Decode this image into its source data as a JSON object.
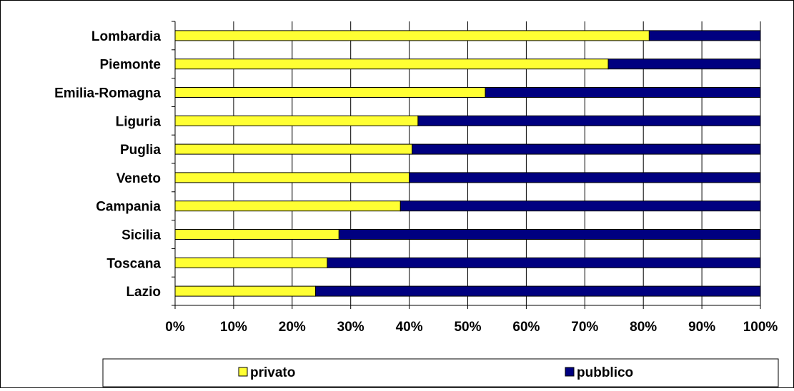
{
  "chart_data": {
    "type": "bar",
    "orientation": "horizontal",
    "stacked": true,
    "percent": true,
    "categories": [
      "Lombardia",
      "Piemonte",
      "Emilia-Romagna",
      "Liguria",
      "Puglia",
      "Veneto",
      "Campania",
      "Sicilia",
      "Toscana",
      "Lazio"
    ],
    "series": [
      {
        "name": "privato",
        "color": "#FFFF33",
        "values": [
          81,
          74,
          53,
          41.5,
          40.5,
          40,
          38.5,
          28,
          26,
          24
        ]
      },
      {
        "name": "pubblico",
        "color": "#000080",
        "values": [
          19,
          26,
          47,
          58.5,
          59.5,
          60,
          61.5,
          72,
          74,
          76
        ]
      }
    ],
    "x_ticks": [
      "0%",
      "10%",
      "20%",
      "30%",
      "40%",
      "50%",
      "60%",
      "70%",
      "80%",
      "90%",
      "100%"
    ],
    "xlim": [
      0,
      100
    ],
    "grid": true,
    "legend_position": "bottom"
  }
}
